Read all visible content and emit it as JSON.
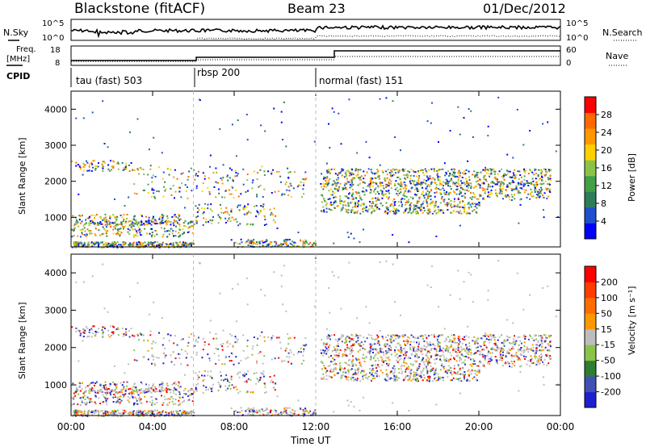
{
  "header": {
    "title": "Blackstone (fitACF)",
    "beam": "Beam 23",
    "date": "01/Dec/2012"
  },
  "top_panels": {
    "nsky_label": "N.Sky",
    "nsky_ticks": [
      "10^5",
      "10^0"
    ],
    "nsearch_label": "N.Search",
    "nsearch_ticks": [
      "10^5",
      "10^0"
    ],
    "freq_label_1": "Freq.",
    "freq_label_2": "[MHz]",
    "freq_ticks": [
      "18",
      "8"
    ],
    "nave_label": "Nave",
    "nave_ticks": [
      "60",
      "0"
    ],
    "cpid_label": "CPID"
  },
  "chart_data": [
    {
      "type": "heatmap",
      "name": "power",
      "ylabel": "Slant Range [km]",
      "yticks": [
        "4000",
        "3000",
        "2000",
        "1000"
      ],
      "ylim": [
        180,
        4500
      ],
      "xticks": [
        "00:00",
        "04:00",
        "08:00",
        "12:00",
        "16:00",
        "20:00",
        "00:00"
      ],
      "colorbar_label": "Power [dB]",
      "colorbar_ticks": [
        "28",
        "24",
        "20",
        "16",
        "12",
        "8",
        "4"
      ],
      "colorbar_colors": [
        "#0000ff",
        "#1f4fd0",
        "#2e7d5a",
        "#43a047",
        "#8bc34a",
        "#ffd000",
        "#ff9800",
        "#ff6a00",
        "#ff0000"
      ]
    },
    {
      "type": "heatmap",
      "name": "velocity",
      "ylabel": "Slant Range [km]",
      "yticks": [
        "4000",
        "3000",
        "2000",
        "1000"
      ],
      "ylim": [
        180,
        4500
      ],
      "xticks": [
        "00:00",
        "04:00",
        "08:00",
        "12:00",
        "16:00",
        "20:00",
        "00:00"
      ],
      "xlabel": "Time UT",
      "colorbar_label": "Velocity [m s⁻¹]",
      "colorbar_ticks": [
        "200",
        "100",
        "50",
        "15",
        "-15",
        "-50",
        "-100",
        "-200"
      ],
      "colorbar_colors": [
        "#1f1fd0",
        "#3f51b5",
        "#2e7d32",
        "#8bc34a",
        "#bdbdbd",
        "#ff9800",
        "#ff6d00",
        "#ff3d00",
        "#ff0000"
      ]
    },
    {
      "type": "line",
      "name": "cpid_segments",
      "segments": [
        {
          "label": "tau (fast) 503",
          "start_hour": 0,
          "end_hour": 6
        },
        {
          "label": "rbsp 200",
          "start_hour": 6,
          "end_hour": 12
        },
        {
          "label": "normal (fast) 151",
          "start_hour": 12,
          "end_hour": 24
        }
      ]
    }
  ],
  "colors": {
    "axis": "#000000",
    "echo_ground": "#bdbdbd",
    "echo_orange": "#ff9800"
  }
}
